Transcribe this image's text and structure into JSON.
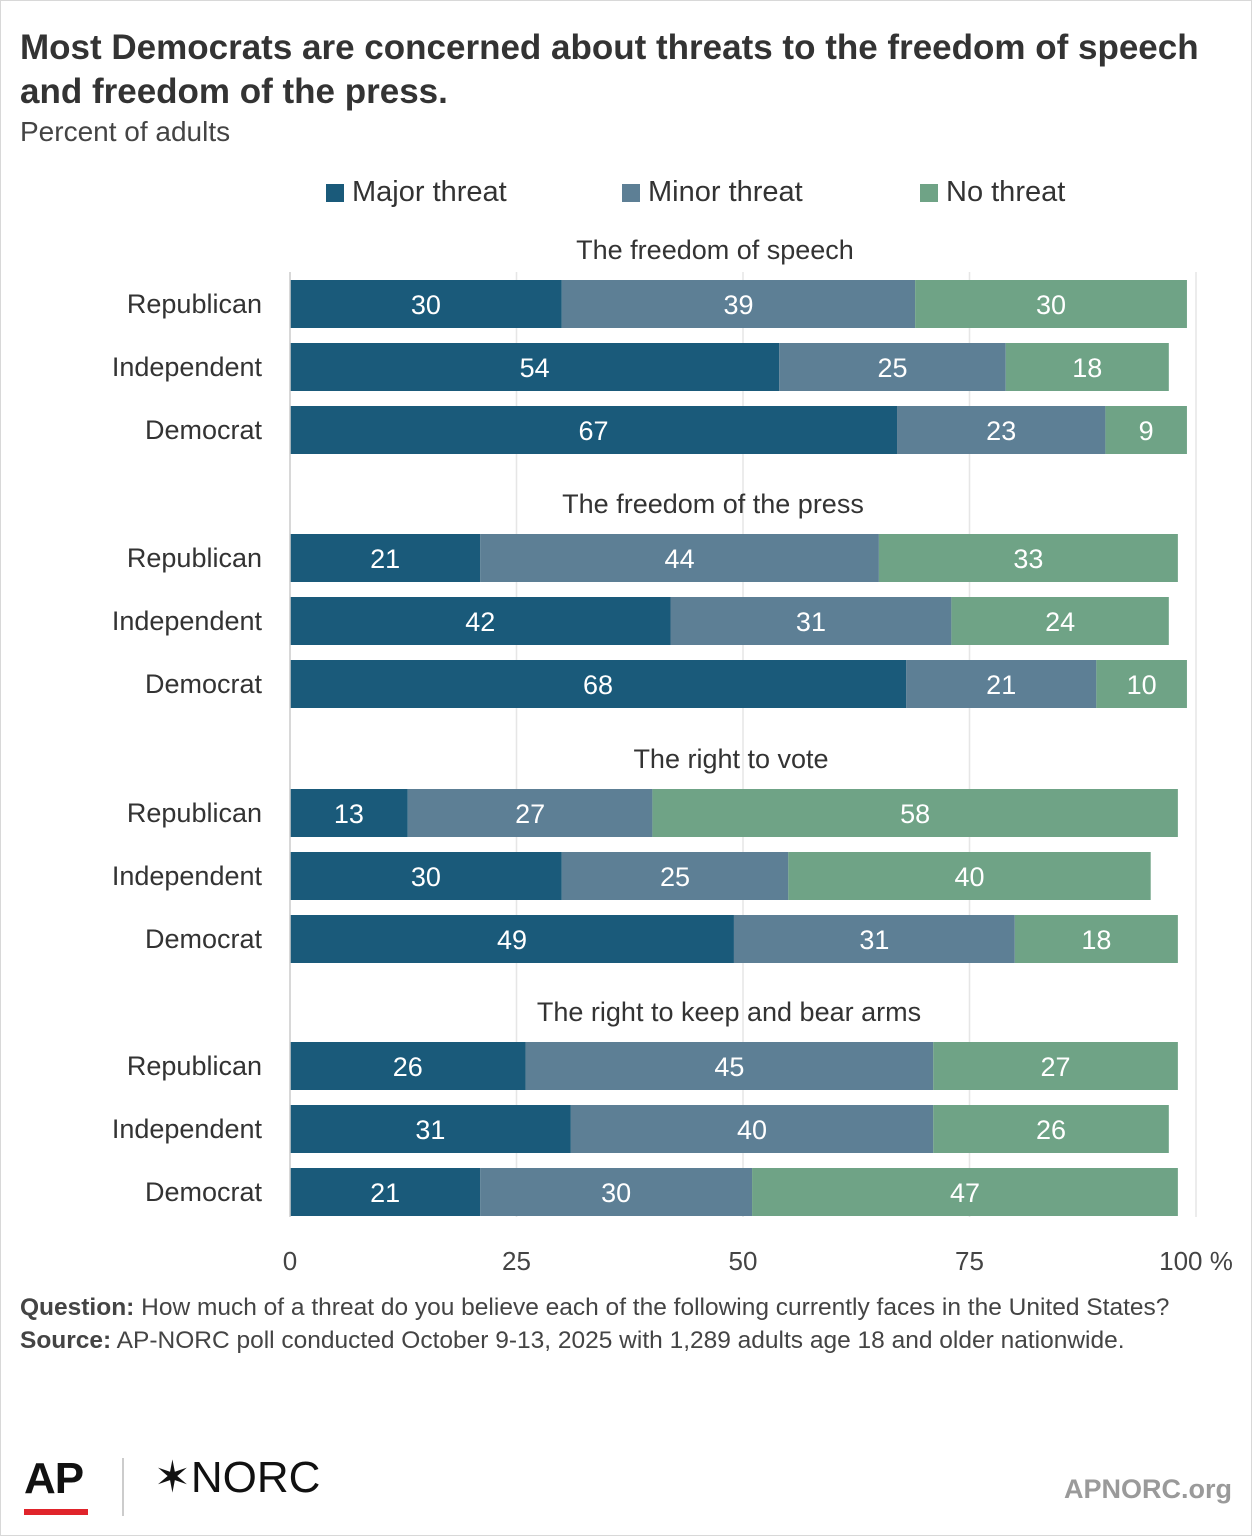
{
  "title": "Most Democrats are concerned about threats to the freedom of speech and freedom of the press.",
  "subtitle": "Percent of adults",
  "legend": [
    {
      "label": "Major threat",
      "color": "#1a5a7a"
    },
    {
      "label": "Minor threat",
      "color": "#5d7f95"
    },
    {
      "label": "No threat",
      "color": "#6fa386"
    }
  ],
  "chart_data": {
    "type": "bar",
    "orientation": "horizontal",
    "stacked": true,
    "xlim": [
      0,
      100
    ],
    "x_ticks": [
      "0",
      "25",
      "50",
      "75",
      "100 %"
    ],
    "grid": true,
    "legend_position": "top",
    "series_names": [
      "Major threat",
      "Minor threat",
      "No threat"
    ],
    "colors": [
      "#1a5a7a",
      "#5d7f95",
      "#6fa386"
    ],
    "groups": [
      {
        "title": "The freedom of speech",
        "rows": [
          {
            "label": "Republican",
            "values": [
              30,
              39,
              30
            ]
          },
          {
            "label": "Independent",
            "values": [
              54,
              25,
              18
            ]
          },
          {
            "label": "Democrat",
            "values": [
              67,
              23,
              9
            ]
          }
        ]
      },
      {
        "title": "The freedom of the press",
        "rows": [
          {
            "label": "Republican",
            "values": [
              21,
              44,
              33
            ]
          },
          {
            "label": "Independent",
            "values": [
              42,
              31,
              24
            ]
          },
          {
            "label": "Democrat",
            "values": [
              68,
              21,
              10
            ]
          }
        ]
      },
      {
        "title": "The right to vote",
        "rows": [
          {
            "label": "Republican",
            "values": [
              13,
              27,
              58
            ]
          },
          {
            "label": "Independent",
            "values": [
              30,
              25,
              40
            ]
          },
          {
            "label": "Democrat",
            "values": [
              49,
              31,
              18
            ]
          }
        ]
      },
      {
        "title": "The right to keep and bear arms",
        "rows": [
          {
            "label": "Republican",
            "values": [
              26,
              45,
              27
            ]
          },
          {
            "label": "Independent",
            "values": [
              31,
              40,
              26
            ]
          },
          {
            "label": "Democrat",
            "values": [
              21,
              30,
              47
            ]
          }
        ]
      }
    ]
  },
  "footer": {
    "question_label": "Question:",
    "question_text": " How much of a threat do you believe each of the following currently faces in the United States?",
    "source_label": "Source:",
    "source_text": " AP-NORC poll conducted October 9-13, 2025 with 1,289 adults age 18 and older nationwide."
  },
  "logos": {
    "ap": "AP",
    "norc": "✶NORC",
    "site": "APNORC.org"
  }
}
